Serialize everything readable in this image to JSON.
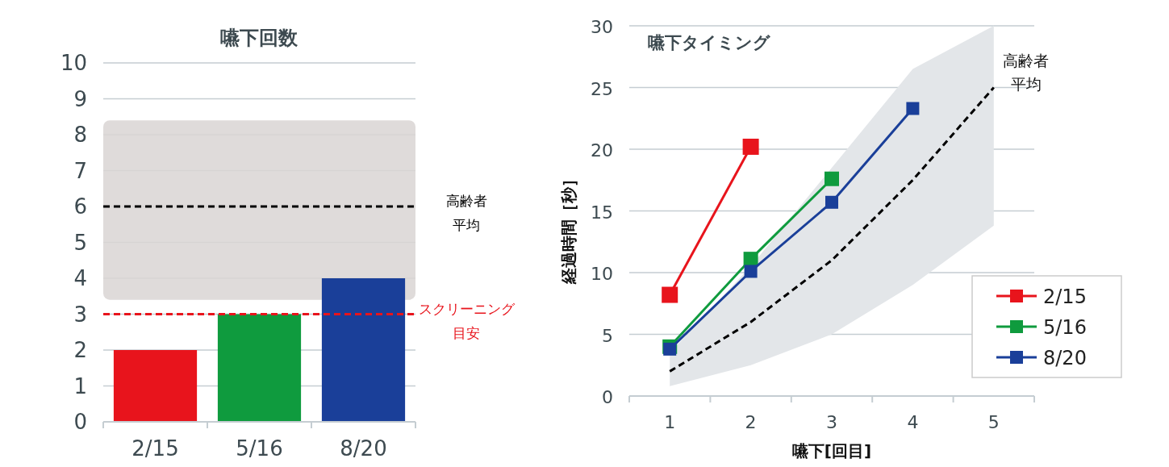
{
  "chart_data": [
    {
      "type": "bar",
      "title": "嚥下回数",
      "categories": [
        "2/15",
        "5/16",
        "8/20"
      ],
      "values": [
        2,
        3,
        4
      ],
      "colors": [
        "#e8141c",
        "#0f9b3e",
        "#1a3f99"
      ],
      "ylim": [
        0,
        10
      ],
      "yticks": [
        0,
        1,
        2,
        3,
        4,
        5,
        6,
        7,
        8,
        9,
        10
      ],
      "grid": "y",
      "bands": [
        {
          "axis": "y",
          "from": 3.4,
          "to": 8.4,
          "color": "#d9d5d3"
        }
      ],
      "ref_lines": [
        {
          "axis": "y",
          "value": 6,
          "label": "高齢者平均",
          "color": "#000000",
          "line_style": "dashed"
        },
        {
          "axis": "y",
          "value": 3,
          "label": "スクリーニング目安",
          "color": "#e8141c",
          "line_style": "dashed"
        }
      ]
    },
    {
      "type": "line",
      "title": "嚥下タイミング",
      "xlabel": "嚥下[回目]",
      "ylabel": "経過時間［秒］",
      "x": [
        1,
        2,
        3,
        4,
        5
      ],
      "xlim": [
        0.5,
        5.5
      ],
      "xticks": [
        1,
        2,
        3,
        4,
        5
      ],
      "ylim": [
        0,
        30
      ],
      "yticks": [
        0,
        5,
        10,
        15,
        20,
        25,
        30
      ],
      "grid": "y",
      "legend": "bottom right",
      "marker": "square",
      "series": [
        {
          "name": "2/15",
          "color": "#e8141c",
          "values": [
            8.2,
            20.2,
            null,
            null,
            null
          ]
        },
        {
          "name": "5/16",
          "color": "#0f9b3e",
          "values": [
            4,
            11.1,
            17.6,
            null,
            null
          ]
        },
        {
          "name": "8/20",
          "color": "#1a3f99",
          "values": [
            3.8,
            10.1,
            15.7,
            23.3,
            null
          ]
        },
        {
          "name": "高齢者平均",
          "color": "#000000",
          "values": [
            2,
            6,
            11,
            17.5,
            25
          ],
          "lower": [
            0.8,
            2.5,
            5,
            9,
            13.8
          ],
          "upper": [
            3.5,
            10.5,
            18.5,
            26.5,
            30
          ],
          "line_style": "dashed",
          "marker": "none"
        }
      ]
    }
  ]
}
